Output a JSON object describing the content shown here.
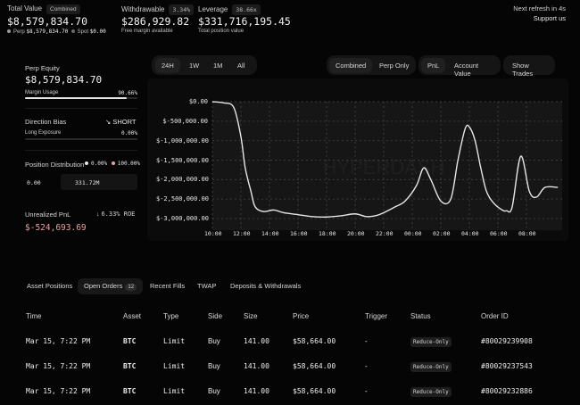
{
  "header": {
    "total_value": {
      "label": "Total Value",
      "tag": "Combined",
      "value": "$8,579,834.70",
      "perp_label": "Perp",
      "perp_value": "$8,579,834.70",
      "spot_label": "Spot",
      "spot_value": "$0.00"
    },
    "withdrawable": {
      "label": "Withdrawable",
      "tag": "3.34%",
      "value": "$286,929.82",
      "sub": "Free margin available"
    },
    "leverage": {
      "label": "Leverage",
      "tag": "38.66x",
      "value": "$331,716,195.45",
      "sub": "Total position value"
    },
    "refresh": "Next refresh in 4s",
    "support": "Support us"
  },
  "left": {
    "perp_equity_label": "Perp Equity",
    "perp_equity_value": "$8,579,834.70",
    "margin_usage_label": "Margin Usage",
    "margin_usage_value": "90.66%",
    "margin_usage_fraction": 0.9066,
    "direction_bias_label": "Direction Bias",
    "direction_bias_value": "SHORT",
    "long_exposure_label": "Long Exposure",
    "long_exposure_value": "0.00%",
    "long_exposure_fraction": 0.0,
    "position_dist_label": "Position Distribution",
    "dist_long": "0.00%",
    "dist_short": "100.00%",
    "dist_long_value": "0.00",
    "dist_short_value": "331.72M",
    "upnl_label": "Unrealized PnL",
    "upnl_roe": "6.33% ROE",
    "upnl_value": "$-524,693.69",
    "colors": {
      "long": "#e8e8e8",
      "short": "#e8a0a0",
      "negative": "#e8a0a0"
    }
  },
  "chart_controls": {
    "ranges": [
      "24H",
      "1W",
      "1M",
      "All"
    ],
    "active_range": "24H",
    "modes": [
      "Combined",
      "Perp Only"
    ],
    "active_mode": "Combined",
    "metrics": [
      "PnL",
      "Account Value"
    ],
    "active_metric": "PnL",
    "show_trades": "Show Trades"
  },
  "chart_data": {
    "type": "line",
    "title": "",
    "xlabel": "",
    "ylabel": "",
    "x_ticks": [
      "10:00",
      "12:00",
      "14:00",
      "16:00",
      "18:00",
      "20:00",
      "22:00",
      "00:00",
      "02:00",
      "04:00",
      "06:00",
      "08:00"
    ],
    "y_ticks": [
      "$0.00",
      "$-500,000.00",
      "$-1,000,000.00",
      "$-1,500,000.00",
      "$-2,000,000.00",
      "$-2,500,000.00",
      "$-3,000,000.00"
    ],
    "ylim": [
      -3000000,
      0
    ],
    "xlim": [
      0,
      24.5
    ],
    "series": [
      {
        "name": "PnL",
        "x": [
          0,
          0.8,
          1.5,
          2,
          2.3,
          2.7,
          3,
          3.6,
          4.3,
          5,
          6,
          7,
          8,
          9,
          10,
          10.8,
          11.5,
          12,
          12.8,
          13.5,
          14.3,
          14.8,
          15.3,
          16,
          16.7,
          17.2,
          17.7,
          18,
          18.4,
          18.8,
          19.2,
          19.7,
          20.3,
          20.6,
          21,
          21.6,
          22.2,
          22.7,
          23.3,
          24.2
        ],
        "y": [
          0,
          -30000,
          -150000,
          -900000,
          -1700000,
          -2300000,
          -2700000,
          -2820000,
          -2780000,
          -2850000,
          -2900000,
          -2950000,
          -2960000,
          -2930000,
          -2880000,
          -2950000,
          -2920000,
          -2850000,
          -2700000,
          -2550000,
          -2150000,
          -1700000,
          -2000000,
          -2550000,
          -2500000,
          -1500000,
          -700000,
          -650000,
          -1000000,
          -1700000,
          -2300000,
          -2600000,
          -2780000,
          -2800000,
          -2700000,
          -1400000,
          -2300000,
          -2450000,
          -2200000,
          -2200000
        ]
      }
    ]
  },
  "tabs": {
    "items": [
      {
        "label": "Asset Positions"
      },
      {
        "label": "Open Orders",
        "count": "12"
      },
      {
        "label": "Recent Fills"
      },
      {
        "label": "TWAP"
      },
      {
        "label": "Deposits & Withdrawals"
      }
    ],
    "active": "Open Orders"
  },
  "table": {
    "columns": [
      "Time",
      "Asset",
      "Type",
      "Side",
      "Size",
      "Price",
      "Trigger",
      "Status",
      "Order ID"
    ],
    "rows": [
      {
        "time": "Mar 15, 7:22 PM",
        "asset": "BTC",
        "type": "Limit",
        "side": "Buy",
        "size": "141.00",
        "price": "$58,664.00",
        "trigger": "-",
        "status": "Reduce-Only",
        "order_id": "#80029239908"
      },
      {
        "time": "Mar 15, 7:22 PM",
        "asset": "BTC",
        "type": "Limit",
        "side": "Buy",
        "size": "141.00",
        "price": "$58,664.00",
        "trigger": "-",
        "status": "Reduce-Only",
        "order_id": "#80029237543"
      },
      {
        "time": "Mar 15, 7:22 PM",
        "asset": "BTC",
        "type": "Limit",
        "side": "Buy",
        "size": "141.00",
        "price": "$58,664.00",
        "trigger": "-",
        "status": "Reduce-Only",
        "order_id": "#80029232886"
      }
    ]
  }
}
